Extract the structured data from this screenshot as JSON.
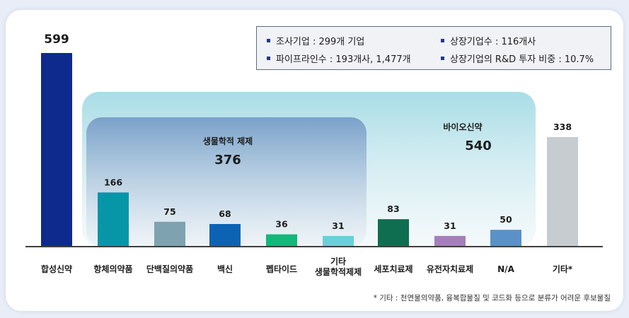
{
  "chart_data": {
    "type": "bar",
    "categories": [
      "합성신약",
      "항체의약품",
      "단백질의약품",
      "백신",
      "펩타이드",
      "기타\n생물학적제제",
      "세포치료제",
      "유전자치료제",
      "N/A",
      "기타*"
    ],
    "values": [
      599,
      166,
      75,
      68,
      36,
      31,
      83,
      31,
      50,
      338
    ],
    "colors": [
      "#0d2a8c",
      "#0796a8",
      "#7fa2b0",
      "#0c63b4",
      "#13b779",
      "#69d0d9",
      "#0f6e50",
      "#a57fb9",
      "#5a91c6",
      "#c7ccd1"
    ],
    "groups": [
      {
        "label": "생물학적 제제",
        "value": "376",
        "from": 1,
        "to": 5
      },
      {
        "label": "바이오신약",
        "value": "540",
        "from": 1,
        "to": 8
      }
    ],
    "ylim": [
      0,
      620
    ],
    "grid": false
  },
  "legend": {
    "items": [
      "조사기업 : 299개 기업",
      "상장기업수 : 116개사",
      "파이프라인수 : 193개사, 1,477개",
      "상장기업의 R&D 투자 비중 : 10.7%"
    ]
  },
  "footnote": "* 기타 : 천연물의약품, 융복합물질 및 코드화 등으로 분류가 어려운 후보물질"
}
